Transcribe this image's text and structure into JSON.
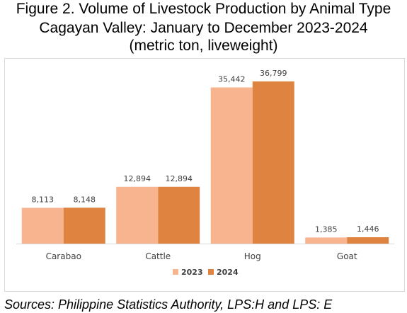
{
  "chart_data": {
    "type": "bar",
    "title_lines": [
      "Figure 2. Volume of Livestock Production by Animal Type",
      "Cagayan Valley: January to December 2023-2024",
      "(metric ton, liveweight)"
    ],
    "categories": [
      "Carabao",
      "Cattle",
      "Hog",
      "Goat"
    ],
    "series": [
      {
        "name": "2023",
        "color": "#f8b48f",
        "values": [
          8113,
          12894,
          35442,
          1385
        ],
        "labels": [
          "8,113",
          "12,894",
          "35,442",
          "1,385"
        ]
      },
      {
        "name": "2024",
        "color": "#df8440",
        "values": [
          8148,
          12894,
          36799,
          1446
        ],
        "labels": [
          "8,148",
          "12,894",
          "36,799",
          "1,446"
        ]
      }
    ],
    "ylim": [
      0,
      36799
    ],
    "grid": false,
    "legend_position": "bottom"
  },
  "source": "Sources: Philippine Statistics Authority, LPS:H and LPS: E"
}
